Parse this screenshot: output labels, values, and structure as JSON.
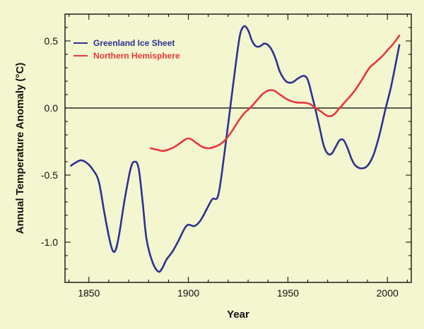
{
  "chart_data": {
    "type": "line",
    "title": "",
    "xlabel": "Year",
    "ylabel": "Annual Temperature Anomaly (°C)",
    "xlim": [
      1838,
      2012
    ],
    "ylim": [
      -1.3,
      0.7
    ],
    "xticks": [
      1850,
      1900,
      1950,
      2000
    ],
    "xtick_labels": [
      "1850",
      "1900",
      "1950",
      "2000"
    ],
    "yticks": [
      -1.0,
      -0.5,
      0.0,
      0.5
    ],
    "ytick_labels": [
      "-1.0",
      "-0.5",
      "0.0",
      "0.5"
    ],
    "zero_line": true,
    "grid": false,
    "legend_position": "top-left",
    "series": [
      {
        "name": "Greenland Ice Sheet",
        "color": "#2e3192",
        "x": [
          1841,
          1843,
          1846,
          1849,
          1852,
          1855,
          1858,
          1861,
          1863,
          1865,
          1868,
          1871,
          1873,
          1875,
          1877,
          1879,
          1882,
          1885,
          1887,
          1889,
          1892,
          1895,
          1898,
          1900,
          1903,
          1906,
          1909,
          1912,
          1915,
          1918,
          1921,
          1924,
          1926,
          1928,
          1930,
          1932,
          1934,
          1936,
          1938,
          1940,
          1942,
          1944,
          1946,
          1949,
          1952,
          1955,
          1958,
          1960,
          1962,
          1964,
          1966,
          1968,
          1970,
          1972,
          1974,
          1976,
          1978,
          1980,
          1982,
          1984,
          1987,
          1990,
          1993,
          1996,
          1999,
          2002,
          2006
        ],
        "y": [
          -0.43,
          -0.41,
          -0.39,
          -0.41,
          -0.46,
          -0.55,
          -0.8,
          -1.02,
          -1.07,
          -0.96,
          -0.68,
          -0.45,
          -0.4,
          -0.45,
          -0.7,
          -0.98,
          -1.15,
          -1.22,
          -1.19,
          -1.13,
          -1.07,
          -0.99,
          -0.9,
          -0.87,
          -0.88,
          -0.84,
          -0.76,
          -0.68,
          -0.65,
          -0.35,
          0.0,
          0.35,
          0.55,
          0.61,
          0.58,
          0.5,
          0.46,
          0.46,
          0.48,
          0.47,
          0.43,
          0.36,
          0.27,
          0.2,
          0.19,
          0.22,
          0.24,
          0.21,
          0.1,
          -0.02,
          -0.15,
          -0.28,
          -0.34,
          -0.34,
          -0.29,
          -0.24,
          -0.24,
          -0.3,
          -0.38,
          -0.43,
          -0.45,
          -0.43,
          -0.35,
          -0.2,
          -0.01,
          0.17,
          0.47
        ]
      },
      {
        "name": "Northern Hemisphere",
        "color": "#e8373d",
        "x": [
          1881,
          1884,
          1887,
          1890,
          1893,
          1896,
          1899,
          1901,
          1904,
          1907,
          1910,
          1913,
          1916,
          1919,
          1922,
          1925,
          1928,
          1931,
          1934,
          1937,
          1940,
          1943,
          1946,
          1949,
          1952,
          1955,
          1958,
          1961,
          1964,
          1967,
          1970,
          1973,
          1976,
          1979,
          1982,
          1985,
          1988,
          1991,
          1994,
          1997,
          2000,
          2003,
          2006
        ],
        "y": [
          -0.3,
          -0.31,
          -0.32,
          -0.31,
          -0.29,
          -0.26,
          -0.23,
          -0.23,
          -0.26,
          -0.29,
          -0.3,
          -0.29,
          -0.27,
          -0.23,
          -0.17,
          -0.1,
          -0.04,
          0.0,
          0.05,
          0.1,
          0.13,
          0.13,
          0.1,
          0.07,
          0.05,
          0.04,
          0.04,
          0.03,
          0.0,
          -0.03,
          -0.06,
          -0.05,
          0.0,
          0.05,
          0.1,
          0.16,
          0.23,
          0.3,
          0.34,
          0.38,
          0.43,
          0.48,
          0.54
        ]
      }
    ]
  }
}
